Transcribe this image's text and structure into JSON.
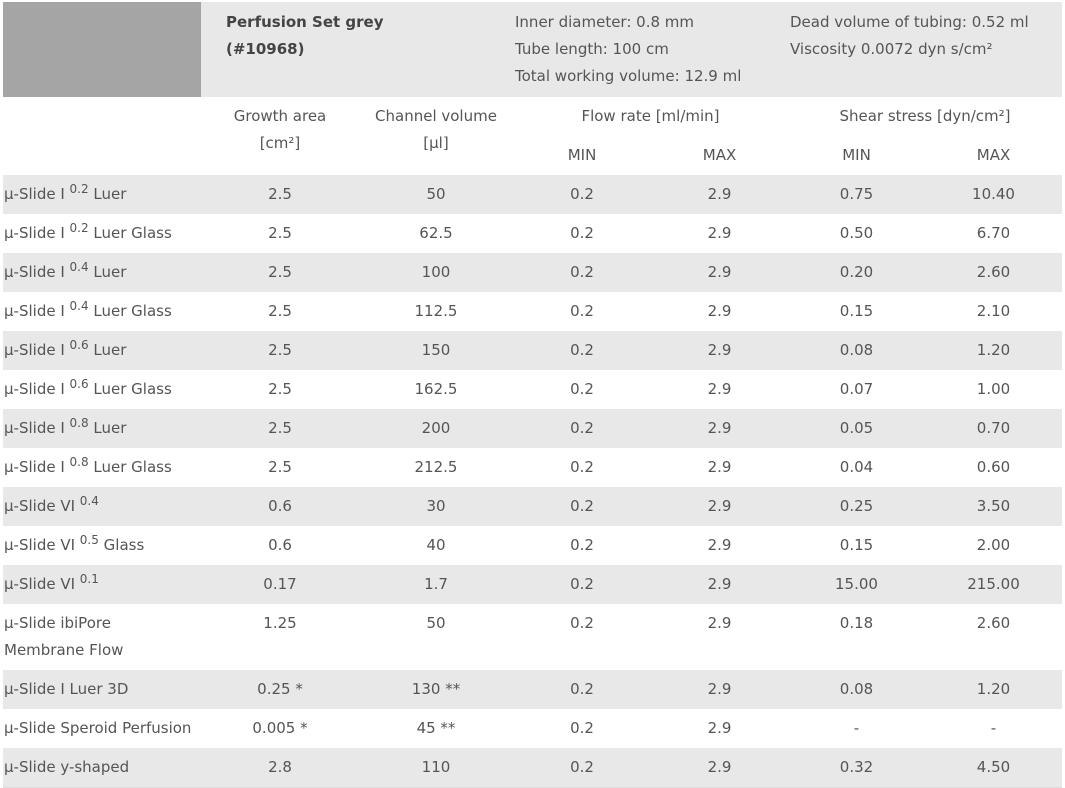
{
  "header": {
    "title": "Perfusion Set grey",
    "code": "(#10968)",
    "specs_left": [
      "Inner diameter: 0.8 mm",
      "Tube length: 100 cm",
      "Total working volume: 12.9 ml"
    ],
    "specs_right": [
      "Dead volume of tubing: 0.52 ml",
      "Viscosity 0.0072 dyn s/cm²"
    ]
  },
  "columns": {
    "growth": [
      "Growth area",
      "[cm²]"
    ],
    "channel": [
      "Channel volume",
      "[µl]"
    ],
    "flow": "Flow rate [ml/min]",
    "shear": "Shear stress [dyn/cm²]",
    "sub": [
      "MIN",
      "MAX",
      "MIN",
      "MAX"
    ]
  },
  "table": {
    "rows": [
      {
        "name": "µ-Slide I",
        "sup": "0.2",
        "suffix": "Luer",
        "cells": [
          "2.5",
          "50",
          "0.2",
          "2.9",
          "0.75",
          "10.40"
        ]
      },
      {
        "name": "µ-Slide I",
        "sup": "0.2",
        "suffix": "Luer Glass",
        "cells": [
          "2.5",
          "62.5",
          "0.2",
          "2.9",
          "0.50",
          "6.70"
        ]
      },
      {
        "name": "µ-Slide I",
        "sup": "0.4",
        "suffix": "Luer",
        "cells": [
          "2.5",
          "100",
          "0.2",
          "2.9",
          "0.20",
          "2.60"
        ]
      },
      {
        "name": "µ-Slide I",
        "sup": "0.4",
        "suffix": "Luer Glass",
        "cells": [
          "2.5",
          "112.5",
          "0.2",
          "2.9",
          "0.15",
          "2.10"
        ]
      },
      {
        "name": "µ-Slide I",
        "sup": "0.6",
        "suffix": "Luer",
        "cells": [
          "2.5",
          "150",
          "0.2",
          "2.9",
          "0.08",
          "1.20"
        ]
      },
      {
        "name": "µ-Slide I",
        "sup": "0.6",
        "suffix": "Luer Glass",
        "cells": [
          "2.5",
          "162.5",
          "0.2",
          "2.9",
          "0.07",
          "1.00"
        ]
      },
      {
        "name": "µ-Slide I",
        "sup": "0.8",
        "suffix": "Luer",
        "cells": [
          "2.5",
          "200",
          "0.2",
          "2.9",
          "0.05",
          "0.70"
        ]
      },
      {
        "name": "µ-Slide I",
        "sup": "0.8",
        "suffix": "Luer Glass",
        "cells": [
          "2.5",
          "212.5",
          "0.2",
          "2.9",
          "0.04",
          "0.60"
        ]
      },
      {
        "name": "µ-Slide VI",
        "sup": "0.4",
        "cells": [
          "0.6",
          "30",
          "0.2",
          "2.9",
          "0.25",
          "3.50"
        ]
      },
      {
        "name": "µ-Slide VI",
        "sup": "0.5",
        "suffix": "Glass",
        "cells": [
          "0.6",
          "40",
          "0.2",
          "2.9",
          "0.15",
          "2.00"
        ]
      },
      {
        "name": "µ-Slide VI",
        "sup": "0.1",
        "cells": [
          "0.17",
          "1.7",
          "0.2",
          "2.9",
          "15.00",
          "215.00"
        ]
      },
      {
        "name": "µ-Slide ibiPore Membrane Flow",
        "cells": [
          "1.25",
          "50",
          "0.2",
          "2.9",
          "0.18",
          "2.60"
        ]
      },
      {
        "name": "µ-Slide I Luer 3D",
        "cells": [
          "0.25 *",
          "130 **",
          "0.2",
          "2.9",
          "0.08",
          "1.20"
        ]
      },
      {
        "name": "µ-Slide Speroid Perfusion",
        "cells": [
          "0.005 *",
          "45 **",
          "0.2",
          "2.9",
          "-",
          "-"
        ]
      },
      {
        "name": "µ-Slide y-shaped",
        "cells": [
          "2.8",
          "110",
          "0.2",
          "2.9",
          "0.32",
          "4.50"
        ]
      }
    ]
  }
}
